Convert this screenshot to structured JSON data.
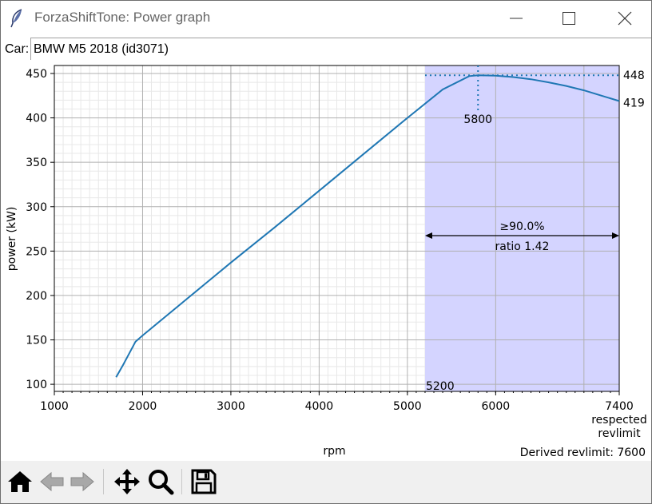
{
  "window": {
    "title": "ForzaShiftTone: Power graph",
    "controls": {
      "minimize_icon": "minimize-icon",
      "maximize_icon": "maximize-icon",
      "close_icon": "close-icon"
    }
  },
  "car": {
    "label": "Car:",
    "value": "BMW M5 2018 (id3071)"
  },
  "derived_revlimit": "Derived revlimit: 7600",
  "colors": {
    "line": "#1f77b4",
    "shade": "#d4d4ff",
    "grid_major": "#b0b0b0",
    "grid_minor": "#e8e8e8"
  },
  "chart_data": {
    "type": "line",
    "xlabel": "rpm",
    "ylabel": "power (kW)",
    "xlim": [
      1000,
      7400
    ],
    "ylim": [
      92,
      459
    ],
    "x_ticks": [
      1000,
      2000,
      3000,
      4000,
      5000,
      6000,
      7400
    ],
    "y_ticks": [
      100,
      150,
      200,
      250,
      300,
      350,
      400,
      450
    ],
    "grid": true,
    "series": [
      {
        "x": [
          1700,
          1780,
          1850,
          1920,
          2000,
          2500,
          3000,
          3500,
          4000,
          4500,
          5000,
          5400,
          5700,
          5800,
          6000,
          6200,
          6400,
          6600,
          6800,
          7000,
          7200,
          7400
        ],
        "y": [
          108,
          122,
          135,
          148,
          155,
          196,
          237,
          277,
          318,
          359,
          400,
          432,
          447,
          448,
          447.5,
          446,
          443.5,
          440,
          436,
          431,
          425,
          419
        ]
      }
    ],
    "shaded_region": {
      "x_start": 5200,
      "x_end": 7400
    },
    "peak": {
      "rpm": 5800,
      "power": 448
    },
    "annotations": {
      "peak_rpm_label": "5800",
      "shade_start_label": "5200",
      "peak_power_label": "448",
      "end_power_label": "419",
      "percent_label": "≥90.0%",
      "ratio_label": "ratio 1.42",
      "end_note_line1": "respected",
      "end_note_line2": "revlimit"
    }
  },
  "toolbar": {
    "buttons": [
      {
        "icon": "home-icon"
      },
      {
        "icon": "back-icon"
      },
      {
        "icon": "forward-icon"
      },
      {
        "icon": "pan-icon"
      },
      {
        "icon": "zoom-icon"
      },
      {
        "icon": "save-icon"
      }
    ]
  }
}
